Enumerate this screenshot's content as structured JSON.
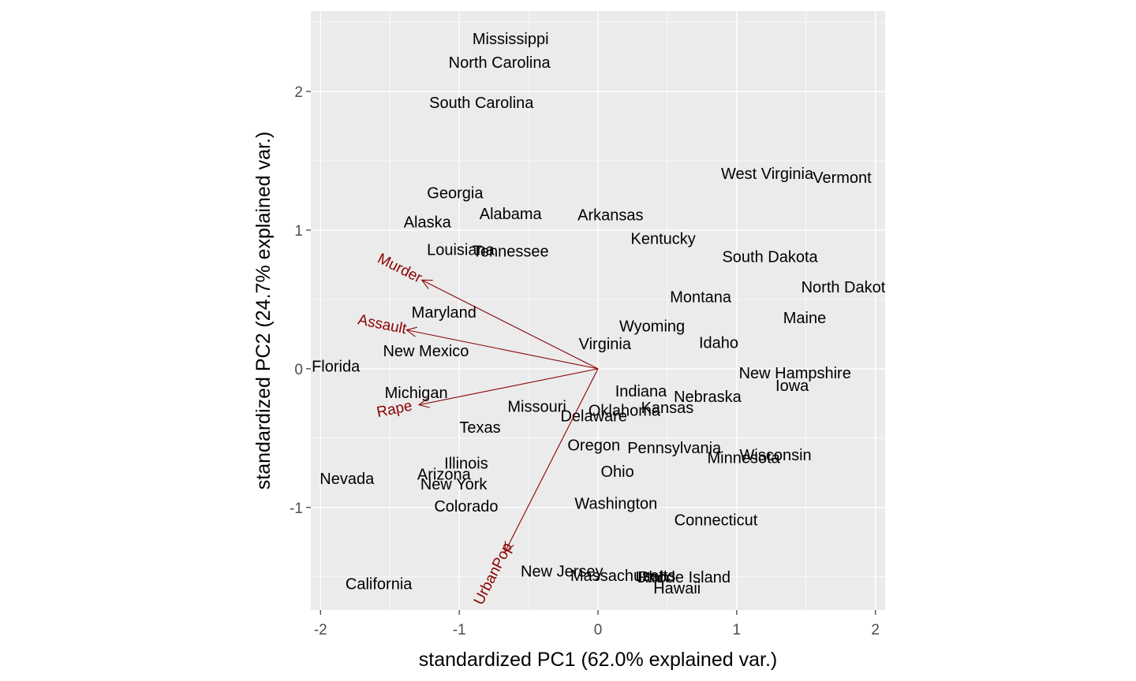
{
  "chart_data": {
    "type": "scatter",
    "subtype": "pca-biplot",
    "xlabel": "standardized PC1 (62.0% explained var.)",
    "ylabel": "standardized PC2 (24.7% explained var.)",
    "xlim": [
      -2.07,
      2.07
    ],
    "ylim": [
      -1.74,
      2.58
    ],
    "x_ticks": [
      -2,
      -1,
      0,
      1,
      2
    ],
    "x_tick_labels": [
      "-2",
      "-1",
      "0",
      "1",
      "2"
    ],
    "y_ticks": [
      -1,
      0,
      1,
      2
    ],
    "y_tick_labels": [
      "-1",
      "0",
      "1",
      "2"
    ],
    "grid": true,
    "panel_background": "#ebebeb",
    "grid_color": "#ffffff",
    "loading_color": "#8b0000",
    "points": [
      {
        "label": "Mississippi",
        "x": -0.63,
        "y": 2.38
      },
      {
        "label": "North Carolina",
        "x": -0.71,
        "y": 2.21
      },
      {
        "label": "South Carolina",
        "x": -0.84,
        "y": 1.92
      },
      {
        "label": "West Virginia",
        "x": 1.22,
        "y": 1.41
      },
      {
        "label": "Vermont",
        "x": 1.76,
        "y": 1.38
      },
      {
        "label": "Georgia",
        "x": -1.03,
        "y": 1.27
      },
      {
        "label": "Alabama",
        "x": -0.63,
        "y": 1.12
      },
      {
        "label": "Arkansas",
        "x": 0.09,
        "y": 1.11
      },
      {
        "label": "Alaska",
        "x": -1.23,
        "y": 1.06
      },
      {
        "label": "Kentucky",
        "x": 0.47,
        "y": 0.94
      },
      {
        "label": "Louisiana",
        "x": -0.99,
        "y": 0.86
      },
      {
        "label": "Tennessee",
        "x": -0.63,
        "y": 0.85
      },
      {
        "label": "South Dakota",
        "x": 1.24,
        "y": 0.81
      },
      {
        "label": "North Dakota",
        "x": 1.8,
        "y": 0.59
      },
      {
        "label": "Montana",
        "x": 0.74,
        "y": 0.52
      },
      {
        "label": "Maryland",
        "x": -1.11,
        "y": 0.41
      },
      {
        "label": "Maine",
        "x": 1.49,
        "y": 0.37
      },
      {
        "label": "Wyoming",
        "x": 0.39,
        "y": 0.31
      },
      {
        "label": "Virginia",
        "x": 0.05,
        "y": 0.18
      },
      {
        "label": "Idaho",
        "x": 0.87,
        "y": 0.19
      },
      {
        "label": "New Mexico",
        "x": -1.24,
        "y": 0.13
      },
      {
        "label": "Florida",
        "x": -1.89,
        "y": 0.02
      },
      {
        "label": "New Hampshire",
        "x": 1.42,
        "y": -0.03
      },
      {
        "label": "Iowa",
        "x": 1.4,
        "y": -0.12
      },
      {
        "label": "Michigan",
        "x": -1.31,
        "y": -0.17
      },
      {
        "label": "Indiana",
        "x": 0.31,
        "y": -0.16
      },
      {
        "label": "Nebraska",
        "x": 0.79,
        "y": -0.2
      },
      {
        "label": "Missouri",
        "x": -0.44,
        "y": -0.27
      },
      {
        "label": "Kansas",
        "x": 0.5,
        "y": -0.28
      },
      {
        "label": "Oklahoma",
        "x": 0.19,
        "y": -0.3
      },
      {
        "label": "Delaware",
        "x": -0.03,
        "y": -0.34
      },
      {
        "label": "Texas",
        "x": -0.85,
        "y": -0.42
      },
      {
        "label": "Oregon",
        "x": -0.03,
        "y": -0.55
      },
      {
        "label": "Pennsylvania",
        "x": 0.55,
        "y": -0.57
      },
      {
        "label": "Wisconsin",
        "x": 1.28,
        "y": -0.62
      },
      {
        "label": "Minnesota",
        "x": 1.05,
        "y": -0.64
      },
      {
        "label": "Illinois",
        "x": -0.95,
        "y": -0.68
      },
      {
        "label": "Ohio",
        "x": 0.14,
        "y": -0.74
      },
      {
        "label": "Arizona",
        "x": -1.11,
        "y": -0.76
      },
      {
        "label": "Nevada",
        "x": -1.81,
        "y": -0.79
      },
      {
        "label": "New York",
        "x": -1.04,
        "y": -0.83
      },
      {
        "label": "Colorado",
        "x": -0.95,
        "y": -0.99
      },
      {
        "label": "Washington",
        "x": 0.13,
        "y": -0.97
      },
      {
        "label": "Connecticut",
        "x": 0.85,
        "y": -1.09
      },
      {
        "label": "New Jersey",
        "x": -0.26,
        "y": -1.46
      },
      {
        "label": "Massachusetts",
        "x": 0.18,
        "y": -1.49
      },
      {
        "label": "Utah",
        "x": 0.39,
        "y": -1.5
      },
      {
        "label": "Rhode Island",
        "x": 0.62,
        "y": -1.5
      },
      {
        "label": "Hawaii",
        "x": 0.57,
        "y": -1.58
      },
      {
        "label": "California",
        "x": -1.58,
        "y": -1.55
      }
    ],
    "loadings": [
      {
        "label": "Murder",
        "x": -1.27,
        "y": 0.64
      },
      {
        "label": "Assault",
        "x": -1.38,
        "y": 0.28
      },
      {
        "label": "Rape",
        "x": -1.29,
        "y": -0.26
      },
      {
        "label": "UrbanPop",
        "x": -0.67,
        "y": -1.32
      }
    ]
  }
}
